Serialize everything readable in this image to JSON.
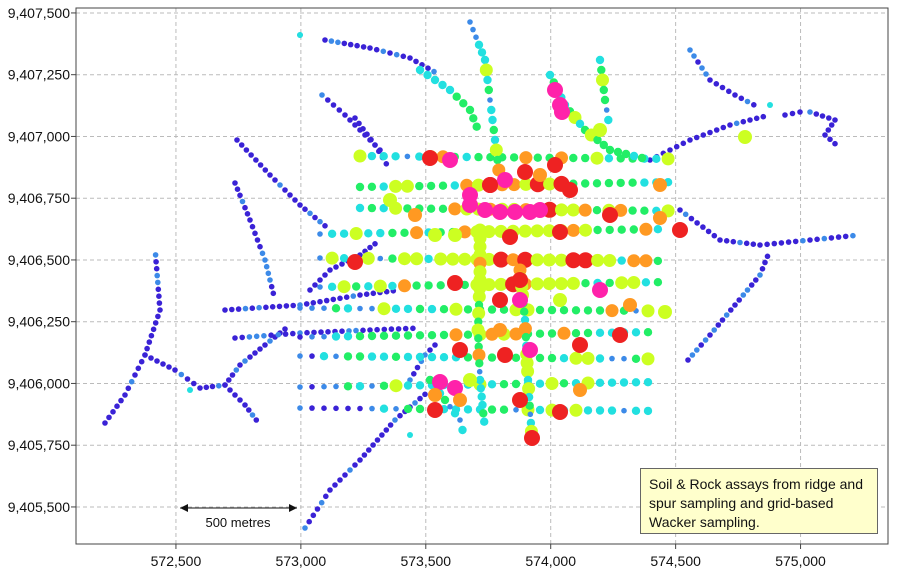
{
  "map": {
    "x_ticks": [
      "572,500",
      "573,000",
      "573,500",
      "574,000",
      "574,500",
      "575,000"
    ],
    "y_ticks": [
      "9,407,500",
      "9,407,250",
      "9,407,000",
      "9,406,750",
      "9,406,500",
      "9,406,250",
      "9,406,000",
      "9,405,750",
      "9,405,500"
    ],
    "x_range": [
      572100,
      575350
    ],
    "y_range": [
      9405350,
      9407520
    ],
    "grid": true,
    "scale_bar_label": "500 metres",
    "scale_bar_length_m": 500,
    "note": "Soil & Rock assays from ridge and spur sampling and grid-based Wacker sampling.",
    "colors": {
      "low": "#3a22d6",
      "low_mid": "#3c8ae8",
      "mid": "#22e0e0",
      "mid_high": "#22ee66",
      "high": "#ccff22",
      "very_high": "#ff9922",
      "extreme": "#ee2222",
      "peak": "#ff22aa"
    }
  }
}
